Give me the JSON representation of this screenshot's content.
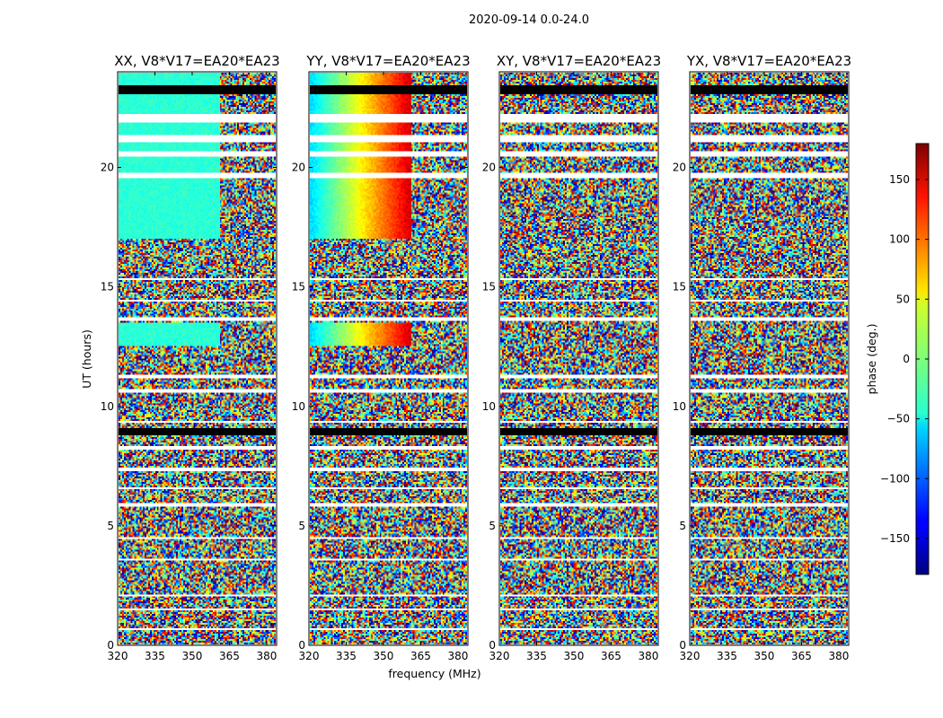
{
  "chart_data": {
    "type": "heatmap",
    "suptitle": "2020-09-14 0.0-24.0",
    "xlabel": "frequency (MHz)",
    "ylabel": "UT (hours)",
    "xlim": [
      320,
      384
    ],
    "ylim": [
      0,
      24
    ],
    "xticks": [
      320,
      335,
      350,
      365,
      380
    ],
    "yticks": [
      0,
      5,
      10,
      15,
      20
    ],
    "panels": [
      {
        "title": "XX, V8*V17=EA20*EA23",
        "coherent_hours": [
          [
            17.0,
            24.0
          ],
          [
            12.5,
            13.5
          ]
        ],
        "coherent_phase_deg": -30,
        "noisy_above_mhz": 361
      },
      {
        "title": "YY, V8*V17=EA20*EA23",
        "coherent_hours": [
          [
            17.0,
            24.0
          ],
          [
            12.5,
            13.5
          ]
        ],
        "coherent_phase_deg": "gradient -60 to 150 over 320-361 MHz",
        "noisy_above_mhz": 361
      },
      {
        "title": "XY, V8*V17=EA20*EA23",
        "coherent_hours": [],
        "coherent_phase_deg": null,
        "noisy_above_mhz": 320
      },
      {
        "title": "YX, V8*V17=EA20*EA23",
        "coherent_hours": [],
        "coherent_phase_deg": null,
        "noisy_above_mhz": 320
      }
    ],
    "flagged_hours": [
      [
        8.75,
        9.05
      ],
      [
        23.1,
        23.5
      ],
      [
        21.9,
        22.3
      ],
      [
        21.1,
        21.4
      ],
      [
        20.5,
        20.7
      ],
      [
        19.6,
        19.8
      ],
      [
        15.3,
        15.4
      ],
      [
        14.4,
        14.5
      ],
      [
        13.6,
        13.7
      ],
      [
        11.2,
        11.3
      ],
      [
        10.6,
        10.7
      ],
      [
        9.3,
        9.4
      ],
      [
        8.2,
        8.3
      ],
      [
        7.3,
        7.4
      ],
      [
        6.5,
        6.6
      ],
      [
        5.8,
        5.9
      ],
      [
        4.4,
        4.5
      ],
      [
        3.5,
        3.6
      ],
      [
        2.0,
        2.1
      ],
      [
        1.4,
        1.5
      ],
      [
        0.6,
        0.7
      ]
    ],
    "colorbar": {
      "label": "phase (deg.)",
      "range": [
        -180,
        180
      ],
      "ticks": [
        -150,
        -100,
        -50,
        0,
        50,
        100,
        150
      ],
      "tick_labels": [
        "−150",
        "−100",
        "−50",
        "0",
        "50",
        "100",
        "150"
      ],
      "colormap": "jet"
    }
  }
}
